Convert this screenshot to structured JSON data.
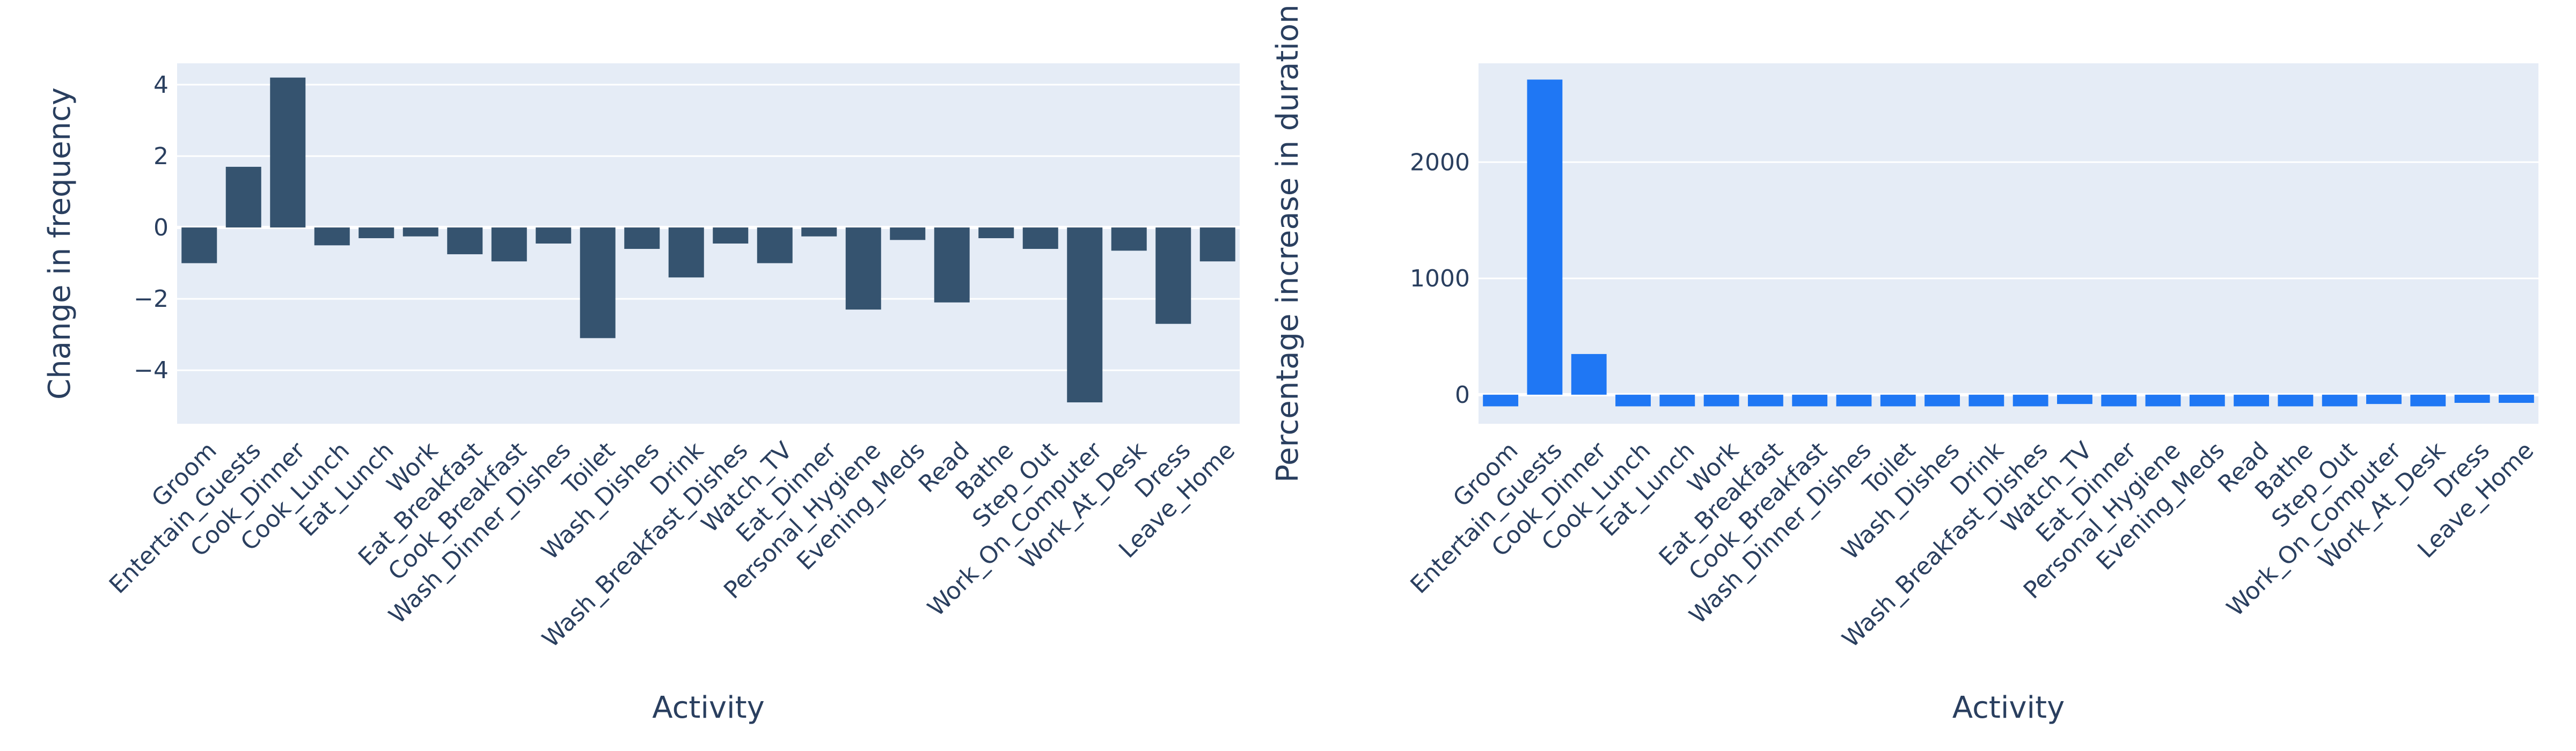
{
  "chart_data": [
    {
      "type": "bar",
      "xlabel": "Activity",
      "ylabel": "Change in frequency",
      "ylim": [
        -5.5,
        4.6
      ],
      "yticks": [
        -4,
        -2,
        0,
        2,
        4
      ],
      "ytick_labels": [
        "−4",
        "−2",
        "0",
        "2",
        "4"
      ],
      "bar_color": "#35536f",
      "categories": [
        "Groom",
        "Entertain_Guests",
        "Cook_Dinner",
        "Cook_Lunch",
        "Eat_Lunch",
        "Work",
        "Eat_Breakfast",
        "Cook_Breakfast",
        "Wash_Dinner_Dishes",
        "Toilet",
        "Wash_Dishes",
        "Drink",
        "Wash_Breakfast_Dishes",
        "Watch_TV",
        "Eat_Dinner",
        "Personal_Hygiene",
        "Evening_Meds",
        "Read",
        "Bathe",
        "Step_Out",
        "Work_On_Computer",
        "Work_At_Desk",
        "Dress",
        "Leave_Home"
      ],
      "values": [
        -1.0,
        1.7,
        4.2,
        -0.5,
        -0.3,
        -0.25,
        -0.75,
        -0.95,
        -0.45,
        -3.1,
        -0.6,
        -1.4,
        -0.45,
        -1.0,
        -0.25,
        -2.3,
        -0.35,
        -2.1,
        -0.3,
        -0.6,
        -4.9,
        -0.65,
        -2.7,
        -0.95
      ],
      "grid": true
    },
    {
      "type": "bar",
      "xlabel": "Activity",
      "ylabel": "Percentage increase in duration",
      "ylim": [
        -250,
        2850
      ],
      "yticks": [
        0,
        1000,
        2000
      ],
      "ytick_labels": [
        "0",
        "1000",
        "2000"
      ],
      "bar_color": "#1f77f4",
      "categories": [
        "Groom",
        "Entertain_Guests",
        "Cook_Dinner",
        "Cook_Lunch",
        "Eat_Lunch",
        "Work",
        "Eat_Breakfast",
        "Cook_Breakfast",
        "Wash_Dinner_Dishes",
        "Toilet",
        "Wash_Dishes",
        "Drink",
        "Wash_Breakfast_Dishes",
        "Watch_TV",
        "Eat_Dinner",
        "Personal_Hygiene",
        "Evening_Meds",
        "Read",
        "Bathe",
        "Step_Out",
        "Work_On_Computer",
        "Work_At_Desk",
        "Dress",
        "Leave_Home"
      ],
      "values": [
        -100,
        2710,
        350,
        -100,
        -100,
        -100,
        -100,
        -100,
        -100,
        -100,
        -100,
        -100,
        -100,
        -80,
        -100,
        -100,
        -100,
        -100,
        -100,
        -100,
        -80,
        -100,
        -70,
        -70
      ],
      "grid": true
    }
  ]
}
